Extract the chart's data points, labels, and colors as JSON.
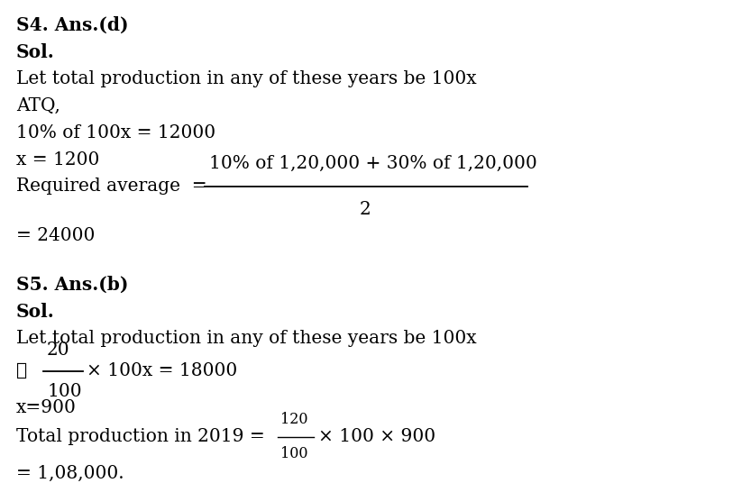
{
  "bg_color": "#ffffff",
  "text_color": "#000000",
  "fig_width": 8.13,
  "fig_height": 5.36,
  "dpi": 100,
  "content": {
    "s4_header": "S4. Ans.(d)",
    "s4_sol": "Sol.",
    "s4_line1": "Let total production in any of these years be 100x",
    "s4_line2": "ATQ,",
    "s4_line3": "10% of 100x = 12000",
    "s4_line4": "x = 1200",
    "s4_req_label": "Required average  =",
    "s4_frac_num": "10% of 1,20,000 + 30% of 1,20,000",
    "s4_frac_den": "2",
    "s4_result": "= 24000",
    "s5_header": "S5. Ans.(b)",
    "s5_sol": "Sol.",
    "s5_line1": "Let total production in any of these years be 100x",
    "s5_therefore": "∴",
    "s5_frac_num2": "20",
    "s5_frac_den2": "100",
    "s5_frac_rest": "× 100x = 18000",
    "s5_line3": "x=900",
    "s5_prod_label": "Total production in 2019 =",
    "s5_frac_num3": "120",
    "s5_frac_den3": "100",
    "s5_prod_rest": "× 100 × 900",
    "s5_result": "= 1,08,000."
  }
}
